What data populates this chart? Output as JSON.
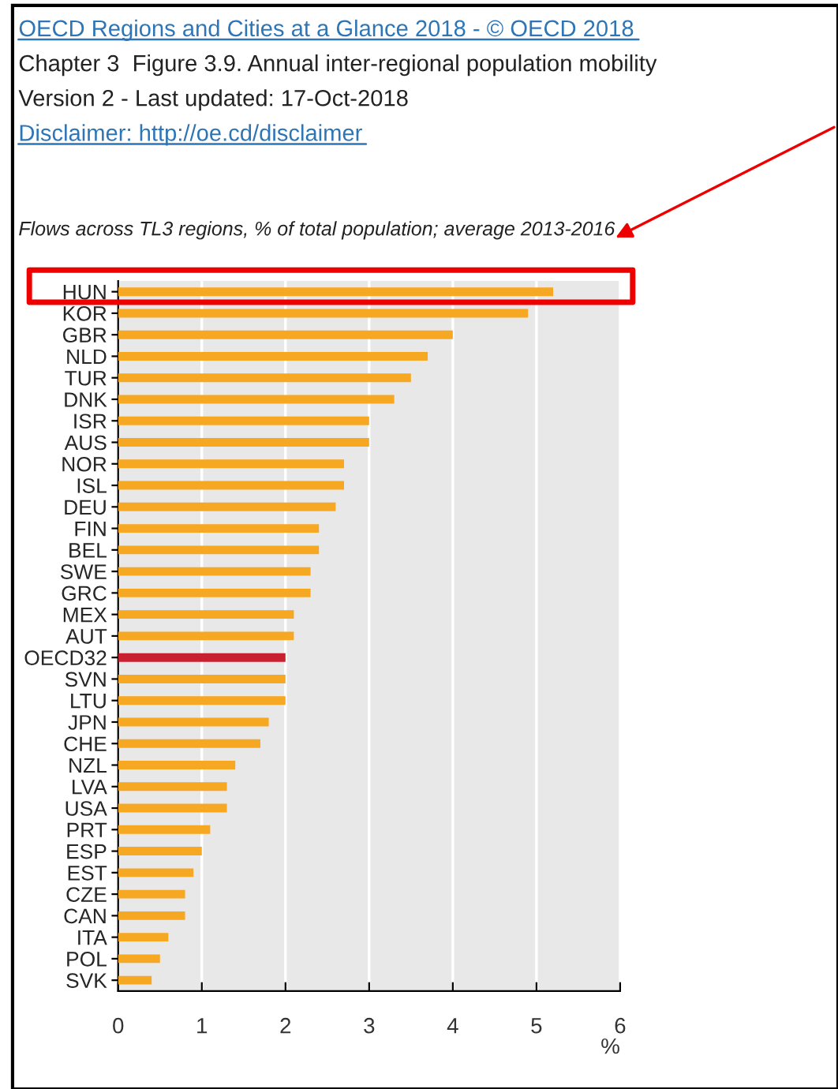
{
  "chart_data": {
    "type": "bar",
    "orientation": "horizontal",
    "title": "Chapter 3  Figure 3.9. Annual inter-regional population mobility",
    "subtitle": "Flows across TL3 regions, % of total population; average 2013-2016",
    "annotations": [
      "OECD Regions and Cities at a Glance 2018 - © OECD 2018",
      "Version 2 - Last updated: 17-Oct-2018",
      "Disclaimer: http://oe.cd/disclaimer"
    ],
    "xlabel": "%",
    "categories": [
      "HUN",
      "KOR",
      "GBR",
      "NLD",
      "TUR",
      "DNK",
      "ISR",
      "AUS",
      "NOR",
      "ISL",
      "DEU",
      "FIN",
      "BEL",
      "SWE",
      "GRC",
      "MEX",
      "AUT",
      "OECD32",
      "SVN",
      "LTU",
      "JPN",
      "CHE",
      "NZL",
      "LVA",
      "USA",
      "PRT",
      "ESP",
      "EST",
      "CZE",
      "CAN",
      "ITA",
      "POL",
      "SVK"
    ],
    "values": [
      5.2,
      4.9,
      4.0,
      3.7,
      3.5,
      3.3,
      3.0,
      3.0,
      2.7,
      2.7,
      2.6,
      2.4,
      2.4,
      2.3,
      2.3,
      2.1,
      2.1,
      2.0,
      2.0,
      2.0,
      1.8,
      1.7,
      1.4,
      1.3,
      1.3,
      1.1,
      1.0,
      0.9,
      0.8,
      0.8,
      0.6,
      0.5,
      0.4
    ],
    "colors": [
      "#f7a823",
      "#f7a823",
      "#f7a823",
      "#f7a823",
      "#f7a823",
      "#f7a823",
      "#f7a823",
      "#f7a823",
      "#f7a823",
      "#f7a823",
      "#f7a823",
      "#f7a823",
      "#f7a823",
      "#f7a823",
      "#f7a823",
      "#f7a823",
      "#f7a823",
      "#c8202f",
      "#f7a823",
      "#f7a823",
      "#f7a823",
      "#f7a823",
      "#f7a823",
      "#f7a823",
      "#f7a823",
      "#f7a823",
      "#f7a823",
      "#f7a823",
      "#f7a823",
      "#f7a823",
      "#f7a823",
      "#f7a823",
      "#f7a823"
    ],
    "xlim": [
      0,
      6
    ],
    "xticks": [
      0,
      1,
      2,
      3,
      4,
      5,
      6
    ],
    "grid": "x"
  }
}
